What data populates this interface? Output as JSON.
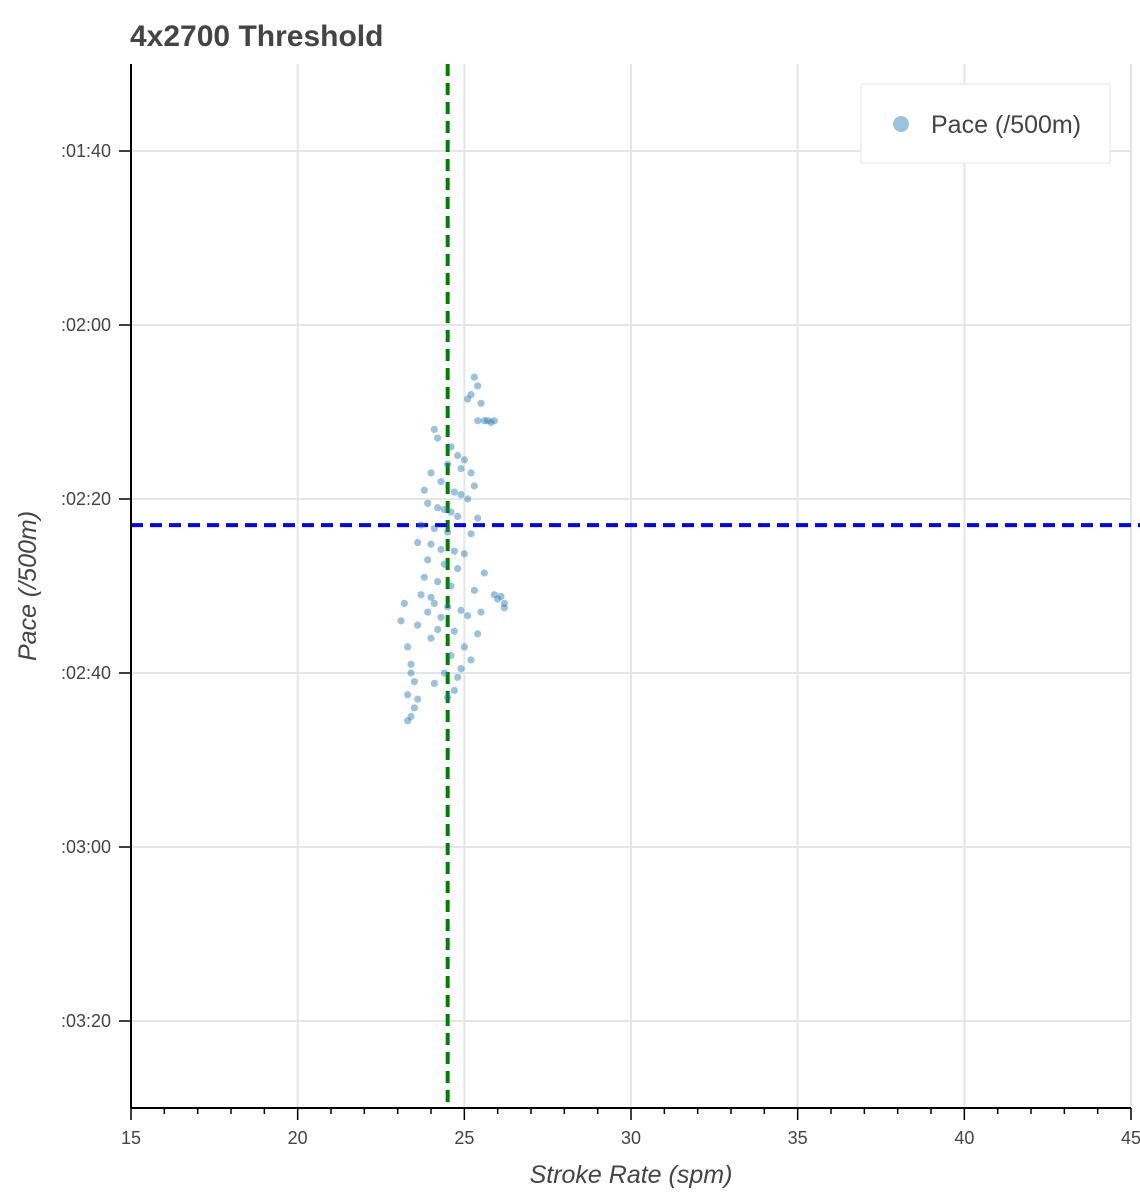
{
  "chart_data": {
    "type": "scatter",
    "title": "4x2700 Threshold",
    "xlabel": "Stroke Rate (spm)",
    "ylabel": "Pace (/500m)",
    "xlim": [
      15,
      45
    ],
    "ylim_seconds": [
      90,
      210
    ],
    "y_inverted": true,
    "x_ticks": [
      15,
      20,
      25,
      30,
      35,
      40,
      45
    ],
    "x_tick_labels": [
      "15",
      "20",
      "25",
      "30",
      "35",
      "40",
      "45"
    ],
    "y_ticks_seconds": [
      100,
      120,
      140,
      160,
      180,
      200
    ],
    "y_tick_labels": [
      ":01:40",
      ":02:00",
      ":02:20",
      ":02:40",
      ":03:00",
      ":03:20"
    ],
    "grid": true,
    "legend": {
      "position": "top-right",
      "entries": [
        "Pace (/500m)"
      ]
    },
    "colors": {
      "points": "#1f77b4",
      "avg_rate_line": "#008000",
      "avg_pace_line": "#0000ff",
      "grid": "#e5e5e5",
      "axis": "#000000"
    },
    "reference_lines": {
      "avg_stroke_rate": 24.5,
      "avg_pace_seconds": 143
    },
    "series": [
      {
        "name": "Pace (/500m)",
        "points": [
          [
            25.3,
            126
          ],
          [
            25.4,
            127
          ],
          [
            25.2,
            128
          ],
          [
            25.1,
            128.5
          ],
          [
            25.5,
            129
          ],
          [
            25.9,
            131
          ],
          [
            25.7,
            131
          ],
          [
            25.6,
            131
          ],
          [
            25.8,
            131.2
          ],
          [
            25.4,
            131
          ],
          [
            24.1,
            132
          ],
          [
            24.2,
            133
          ],
          [
            24.6,
            134
          ],
          [
            24.8,
            135
          ],
          [
            25.0,
            135.5
          ],
          [
            24.5,
            136
          ],
          [
            24.9,
            136.5
          ],
          [
            25.2,
            137
          ],
          [
            24.0,
            137
          ],
          [
            24.3,
            138
          ],
          [
            25.3,
            138.5
          ],
          [
            23.8,
            139
          ],
          [
            24.7,
            139.2
          ],
          [
            24.9,
            139.5
          ],
          [
            25.1,
            140
          ],
          [
            23.9,
            140.5
          ],
          [
            24.2,
            141
          ],
          [
            24.4,
            141.2
          ],
          [
            24.6,
            141.5
          ],
          [
            24.8,
            142
          ],
          [
            25.4,
            142.2
          ],
          [
            23.7,
            143
          ],
          [
            24.1,
            143.4
          ],
          [
            24.5,
            143.8
          ],
          [
            25.2,
            144
          ],
          [
            23.6,
            145
          ],
          [
            24.0,
            145.2
          ],
          [
            24.3,
            145.8
          ],
          [
            24.7,
            146
          ],
          [
            25.0,
            146.3
          ],
          [
            23.9,
            147
          ],
          [
            24.4,
            147.5
          ],
          [
            24.8,
            148
          ],
          [
            25.6,
            148.5
          ],
          [
            23.8,
            149
          ],
          [
            24.2,
            149.5
          ],
          [
            24.6,
            150
          ],
          [
            25.3,
            150.5
          ],
          [
            23.7,
            151
          ],
          [
            24.0,
            151.3
          ],
          [
            25.9,
            151
          ],
          [
            26.0,
            151.5
          ],
          [
            26.1,
            151.2
          ],
          [
            26.2,
            152
          ],
          [
            26.2,
            152.5
          ],
          [
            24.1,
            152
          ],
          [
            24.5,
            152.4
          ],
          [
            24.9,
            152.8
          ],
          [
            25.5,
            153
          ],
          [
            23.2,
            152
          ],
          [
            23.9,
            153
          ],
          [
            24.3,
            153.6
          ],
          [
            25.1,
            153.4
          ],
          [
            23.1,
            154
          ],
          [
            23.6,
            154.5
          ],
          [
            24.2,
            155
          ],
          [
            24.7,
            155.2
          ],
          [
            25.4,
            155.5
          ],
          [
            24.0,
            156
          ],
          [
            25.0,
            157
          ],
          [
            23.3,
            157
          ],
          [
            24.6,
            158
          ],
          [
            25.2,
            158.5
          ],
          [
            23.4,
            159
          ],
          [
            24.9,
            159.5
          ],
          [
            23.4,
            160
          ],
          [
            24.4,
            160
          ],
          [
            24.8,
            160.5
          ],
          [
            23.5,
            161
          ],
          [
            24.1,
            161.2
          ],
          [
            24.7,
            162
          ],
          [
            23.3,
            162.5
          ],
          [
            23.6,
            163
          ],
          [
            24.5,
            162.8
          ],
          [
            23.5,
            164
          ],
          [
            23.4,
            165
          ],
          [
            23.3,
            165.5
          ]
        ]
      }
    ]
  }
}
